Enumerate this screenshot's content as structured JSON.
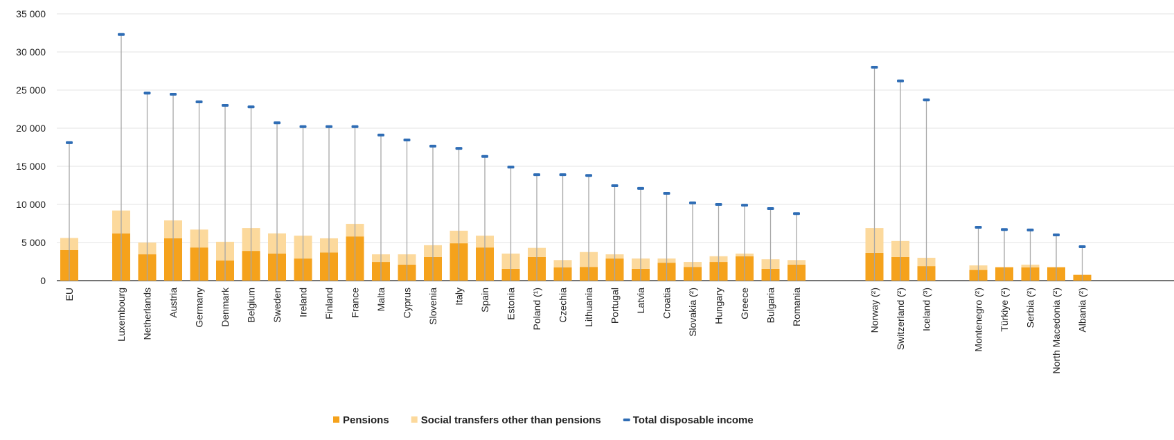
{
  "chart_data": {
    "type": "bar",
    "stacked": true,
    "categories": [
      "EU",
      null,
      "Luxembourg",
      "Netherlands",
      "Austria",
      "Germany",
      "Denmark",
      "Belgium",
      "Sweden",
      "Ireland",
      "Finland",
      "France",
      "Malta",
      "Cyprus",
      "Slovenia",
      "Italy",
      "Spain",
      "Estonia",
      "Poland (¹)",
      "Czechia",
      "Lithuania",
      "Portugal",
      "Latvia",
      "Croatia",
      "Slovakia (²)",
      "Hungary",
      "Greece",
      "Bulgaria",
      "Romania",
      null,
      null,
      "Norway (²)",
      "Switzerland (²)",
      "Iceland (³)",
      null,
      "Montenegro (²)",
      "Türkiye (²)",
      "Serbia (²)",
      "North Macedonia (²)",
      "Albania (²)"
    ],
    "series": [
      {
        "name": "Pensions",
        "type": "bar",
        "color": "#f5a21c",
        "values": [
          4000,
          null,
          6200,
          3450,
          5550,
          4350,
          2650,
          3900,
          3550,
          2900,
          3700,
          5800,
          2450,
          2100,
          3100,
          4900,
          4350,
          1550,
          3100,
          1750,
          1800,
          2900,
          1550,
          2350,
          1800,
          2450,
          3200,
          1550,
          2100,
          null,
          null,
          3650,
          3100,
          1900,
          null,
          1400,
          1750,
          1750,
          1750,
          750
        ]
      },
      {
        "name": "Social transfers other than pensions",
        "type": "bar",
        "color": "#fcd99c",
        "values": [
          1600,
          null,
          3000,
          1550,
          2350,
          2350,
          2450,
          3000,
          2650,
          3000,
          1850,
          1650,
          1000,
          1350,
          1550,
          1650,
          1550,
          2000,
          1200,
          950,
          1950,
          550,
          1350,
          550,
          650,
          750,
          350,
          1250,
          600,
          null,
          null,
          3250,
          2100,
          1100,
          null,
          600,
          50,
          350,
          50,
          50
        ]
      },
      {
        "name": "Total disposable income",
        "type": "marker",
        "color": "#2f6db5",
        "values": [
          18100,
          null,
          32300,
          24600,
          24450,
          23450,
          23000,
          22800,
          20700,
          20200,
          20200,
          20200,
          19100,
          18450,
          17650,
          17350,
          16300,
          14900,
          13900,
          13900,
          13800,
          12450,
          12100,
          11450,
          10200,
          10000,
          9900,
          9450,
          8800,
          null,
          null,
          28000,
          26200,
          23700,
          null,
          7000,
          6700,
          6650,
          6000,
          4450
        ]
      }
    ],
    "ylim": [
      0,
      35000
    ],
    "yticks": [
      {
        "value": 0,
        "label": "0"
      },
      {
        "value": 5000,
        "label": "5 000"
      },
      {
        "value": 10000,
        "label": "10 000"
      },
      {
        "value": 15000,
        "label": "15 000"
      },
      {
        "value": 20000,
        "label": "20 000"
      },
      {
        "value": 25000,
        "label": "25 000"
      },
      {
        "value": 30000,
        "label": "30 000"
      },
      {
        "value": 35000,
        "label": "35 000"
      }
    ],
    "grid": true,
    "legend": "bottom"
  }
}
